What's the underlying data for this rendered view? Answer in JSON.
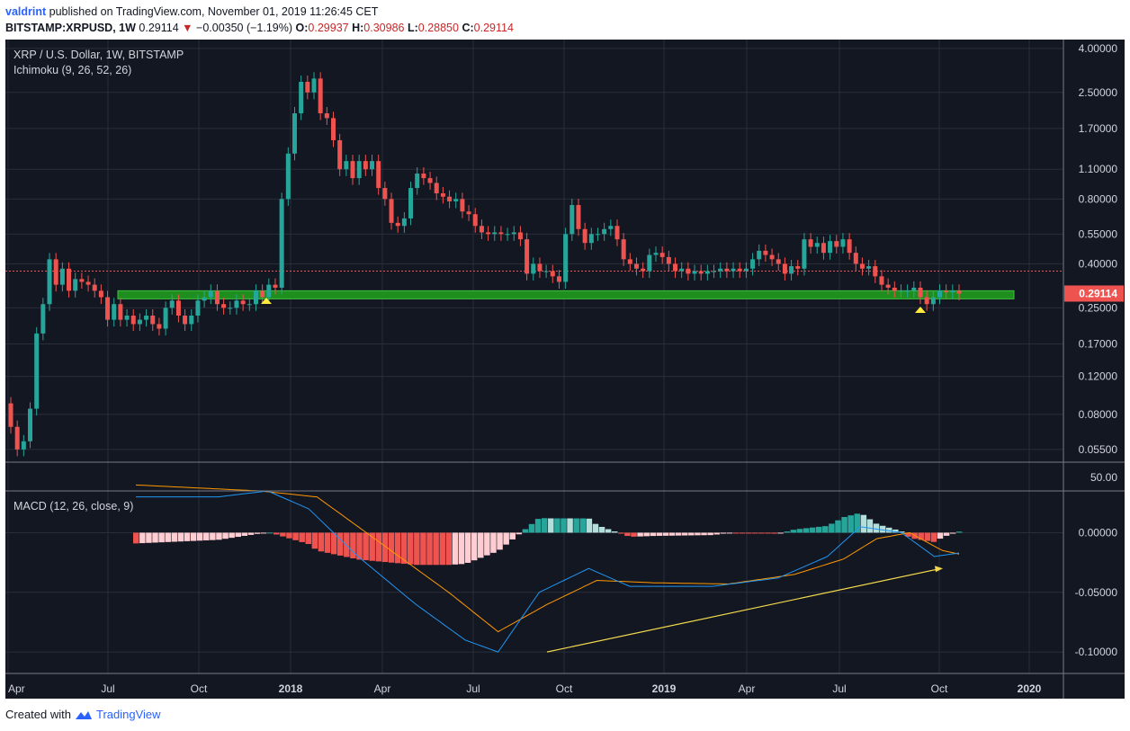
{
  "header": {
    "author": "valdrint",
    "published_text": "published on TradingView.com, November 01, 2019 11:26:45 CET",
    "symbol": "BITSTAMP:XRPUSD",
    "interval": ", 1W",
    "last": "0.29114",
    "change_arrow": "▼",
    "change": "−0.00350 (−1.19%)",
    "o_label": "O:",
    "o_value": "0.29937",
    "h_label": "H:",
    "h_value": "0.30986",
    "l_label": "L:",
    "l_value": "0.28850",
    "c_label": "C:",
    "c_value": "0.29114"
  },
  "legend": {
    "price_title": "XRP / U.S. Dollar, 1W, BITSTAMP",
    "ichimoku": "Ichimoku (9, 26, 52, 26)",
    "macd": "MACD (12, 26, close, 9)"
  },
  "footer": {
    "created_with": "Created with",
    "brand": "TradingView"
  },
  "colors": {
    "background": "#131722",
    "grid": "#2a2e39",
    "up": "#26a69a",
    "down": "#ef5350",
    "hist_up_strong": "#26a69a",
    "hist_up_weak": "#b2dfdb",
    "hist_down_strong": "#ef5350",
    "hist_down_weak": "#ffcdd2",
    "macd_line": "#2196f3",
    "signal_line": "#ff9800",
    "support_zone": "#1e8e1e",
    "trendline": "#f2d94e",
    "marker": "#ffeb3b",
    "price_tag": "#ef5350"
  },
  "chart_data": [
    {
      "type": "candlestick",
      "title": "XRP / U.S. Dollar, 1W, BITSTAMP",
      "scale": "log",
      "y_ticks": [
        "4.00000",
        "2.50000",
        "1.70000",
        "1.10000",
        "0.80000",
        "0.55000",
        "0.40000",
        "0.25000",
        "0.17000",
        "0.12000",
        "0.08000",
        "0.05500"
      ],
      "x_ticks": [
        "Apr",
        "Jul",
        "Oct",
        "2018",
        "Apr",
        "Jul",
        "Oct",
        "2019",
        "Apr",
        "Jul",
        "Oct",
        "2020"
      ],
      "last_price": "0.29114",
      "support_zone": [
        0.275,
        0.3
      ],
      "markers": [
        "2017-12",
        "2019-09"
      ],
      "closes": [
        0.07,
        0.055,
        0.06,
        0.085,
        0.19,
        0.26,
        0.42,
        0.32,
        0.38,
        0.3,
        0.34,
        0.33,
        0.32,
        0.3,
        0.28,
        0.22,
        0.26,
        0.22,
        0.23,
        0.21,
        0.22,
        0.23,
        0.21,
        0.2,
        0.25,
        0.27,
        0.23,
        0.21,
        0.23,
        0.27,
        0.28,
        0.3,
        0.26,
        0.25,
        0.25,
        0.27,
        0.26,
        0.26,
        0.3,
        0.28,
        0.32,
        0.31,
        0.8,
        1.3,
        2.0,
        2.8,
        2.5,
        2.9,
        2.0,
        1.9,
        1.5,
        1.1,
        1.2,
        1.0,
        1.2,
        1.1,
        1.2,
        0.9,
        0.8,
        0.62,
        0.6,
        0.65,
        0.9,
        1.05,
        1.0,
        0.95,
        0.85,
        0.82,
        0.78,
        0.8,
        0.7,
        0.68,
        0.6,
        0.56,
        0.55,
        0.56,
        0.55,
        0.55,
        0.56,
        0.52,
        0.36,
        0.4,
        0.37,
        0.37,
        0.35,
        0.33,
        0.55,
        0.75,
        0.58,
        0.5,
        0.55,
        0.55,
        0.58,
        0.6,
        0.52,
        0.42,
        0.4,
        0.38,
        0.37,
        0.44,
        0.45,
        0.43,
        0.4,
        0.37,
        0.38,
        0.36,
        0.37,
        0.36,
        0.37,
        0.37,
        0.38,
        0.37,
        0.38,
        0.37,
        0.38,
        0.42,
        0.46,
        0.44,
        0.42,
        0.4,
        0.36,
        0.39,
        0.38,
        0.52,
        0.48,
        0.5,
        0.45,
        0.51,
        0.48,
        0.52,
        0.45,
        0.4,
        0.38,
        0.39,
        0.35,
        0.32,
        0.31,
        0.3,
        0.3,
        0.3,
        0.31,
        0.28,
        0.26,
        0.28,
        0.3,
        0.295,
        0.3,
        0.29114
      ]
    },
    {
      "type": "macd",
      "title": "MACD (12, 26, close, 9)",
      "y_ticks": [
        "50.00",
        "0.00000",
        "-0.05000",
        "-0.10000"
      ],
      "final_histogram": 0.003,
      "macd_line_trend": "falls from above 0.03 to about -0.10 in Sep 2018, then rises to about -0.017 by Nov 2019",
      "signal_line_trend": "falls to about -0.083 in Sep 2018, then rises to about -0.018 by Nov 2019",
      "trendline": "rising support from about -0.10 (Sep 2018) to about -0.03 (Oct 2019)"
    }
  ]
}
